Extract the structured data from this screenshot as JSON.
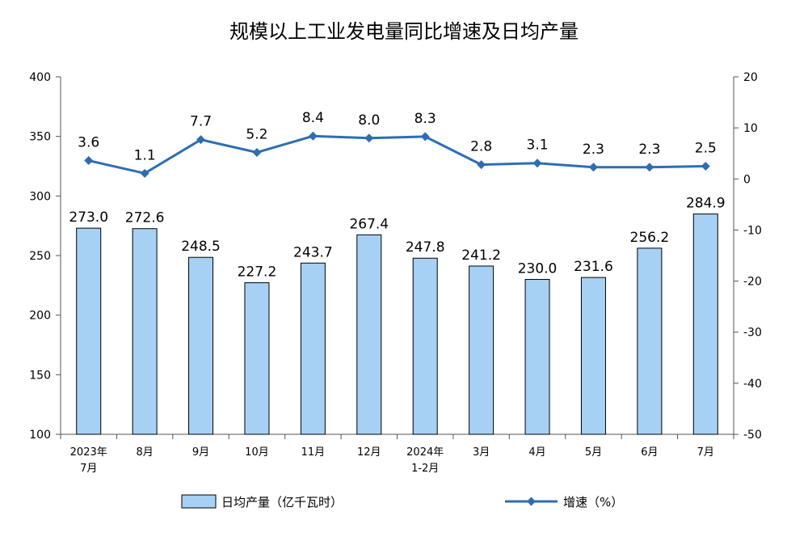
{
  "chart_data": {
    "type": "bar+line",
    "title": "规模以上工业发电量同比增速及日均产量",
    "categories": [
      [
        "2023年",
        "7月"
      ],
      [
        "8月"
      ],
      [
        "9月"
      ],
      [
        "10月"
      ],
      [
        "11月"
      ],
      [
        "12月"
      ],
      [
        "2024年",
        "1-2月"
      ],
      [
        "3月"
      ],
      [
        "4月"
      ],
      [
        "5月"
      ],
      [
        "6月"
      ],
      [
        "7月"
      ]
    ],
    "series": [
      {
        "name": "日均产量（亿千瓦时）",
        "type": "bar",
        "axis": "left",
        "values": [
          273.0,
          272.6,
          248.5,
          227.2,
          243.7,
          267.4,
          247.8,
          241.2,
          230.0,
          231.6,
          256.2,
          284.9
        ],
        "labels": [
          "273.0",
          "272.6",
          "248.5",
          "227.2",
          "243.7",
          "267.4",
          "247.8",
          "241.2",
          "230.0",
          "231.6",
          "256.2",
          "284.9"
        ]
      },
      {
        "name": "增速（%）",
        "type": "line",
        "axis": "right",
        "values": [
          3.6,
          1.1,
          7.7,
          5.2,
          8.4,
          8.0,
          8.3,
          2.8,
          3.1,
          2.3,
          2.3,
          2.5
        ],
        "labels": [
          "3.6",
          "1.1",
          "7.7",
          "5.2",
          "8.4",
          "8.0",
          "8.3",
          "2.8",
          "3.1",
          "2.3",
          "2.3",
          "2.5"
        ]
      }
    ],
    "y_left": {
      "min": 100,
      "max": 400,
      "ticks": [
        "100",
        "150",
        "200",
        "250",
        "300",
        "350",
        "400"
      ]
    },
    "y_right": {
      "min": -50,
      "max": 20,
      "ticks": [
        "-50",
        "-40",
        "-30",
        "-20",
        "-10",
        "0",
        "10",
        "20"
      ]
    },
    "grid": false,
    "legend_position": "bottom",
    "colors": {
      "bar_fill": "#a7d0f5",
      "bar_stroke": "#000000",
      "line": "#2e6db4",
      "axis": "#555555"
    }
  }
}
